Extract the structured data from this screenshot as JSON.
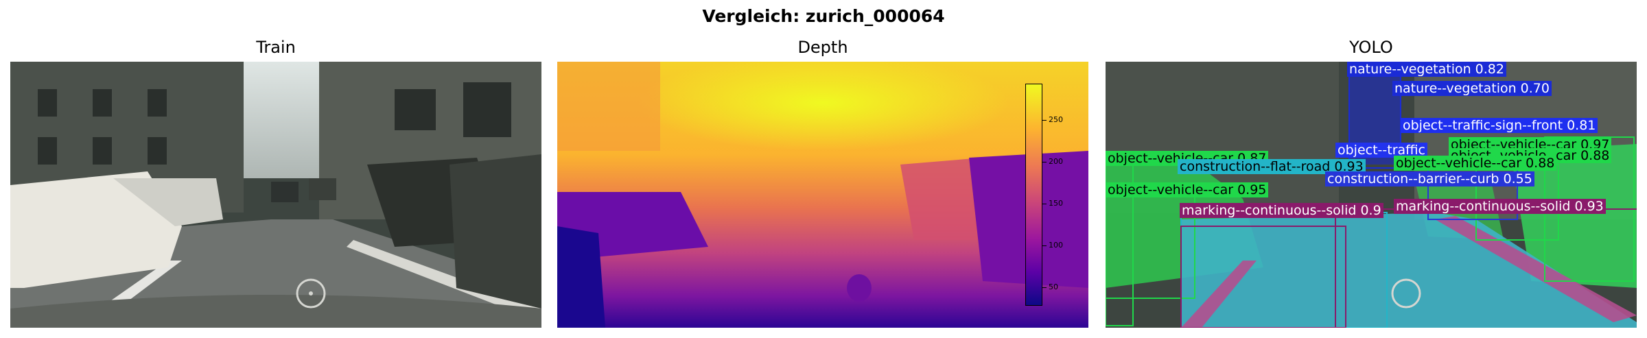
{
  "figure": {
    "title": "Vergleich: zurich_000064"
  },
  "panels": {
    "train": {
      "title": "Train"
    },
    "depth": {
      "title": "Depth",
      "colorbar": {
        "ticks": [
          "250",
          "200",
          "150",
          "100",
          "50"
        ],
        "colormap": "plasma"
      }
    },
    "yolo": {
      "title": "YOLO",
      "detections": [
        {
          "label": "nature--vegetation 0.82",
          "color": "#1a2bd6"
        },
        {
          "label": "nature--vegetation 0.70",
          "color": "#1a2bd6"
        },
        {
          "label": "object--traffic-sign--front 0.81",
          "color": "#1e2ff0"
        },
        {
          "label": "object--traffic",
          "color": "#2233ee"
        },
        {
          "label": "object--vehicle--car 0.97",
          "color": "#20d84a"
        },
        {
          "label": "object--vehicle--car 0.88",
          "color": "#20d84a"
        },
        {
          "label": "object--vehicle--car 0.87",
          "color": "#20d84a"
        },
        {
          "label": "object--vehicle--car 0.88",
          "color": "#20d84a"
        },
        {
          "label": "construction--flat--road 0.93",
          "color": "#23b5c8"
        },
        {
          "label": "construction--barrier--curb 0.55",
          "color": "#2636d8"
        },
        {
          "label": "object--vehicle--car 0.95",
          "color": "#20d84a"
        },
        {
          "label": "marking--continuous--solid 0.9",
          "color": "#8a1a6a"
        },
        {
          "label": "marking--continuous--solid 0.93",
          "color": "#8a1a6a"
        }
      ]
    }
  }
}
